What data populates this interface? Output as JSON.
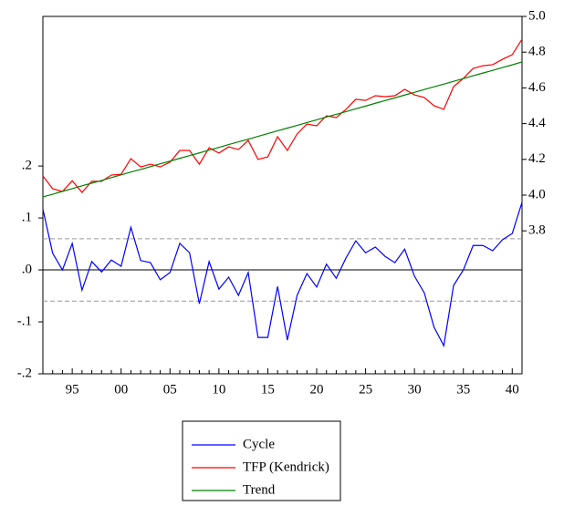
{
  "chart_data": {
    "type": "line",
    "categories": [
      null,
      null,
      null,
      "95",
      null,
      null,
      null,
      null,
      "00",
      null,
      null,
      null,
      null,
      "05",
      null,
      null,
      null,
      null,
      "10",
      null,
      null,
      null,
      null,
      "15",
      null,
      null,
      null,
      null,
      "20",
      null,
      null,
      null,
      null,
      "25",
      null,
      null,
      null,
      null,
      "30",
      null,
      null,
      null,
      null,
      "35",
      null,
      null,
      null,
      null,
      "40",
      null
    ],
    "ylim": [
      -0.2,
      0.488
    ],
    "yticks": [
      {
        "value": -0.2,
        "label": "-.2"
      },
      {
        "value": -0.1,
        "label": "-.1"
      },
      {
        "value": 0,
        "label": ".0"
      },
      {
        "value": 0.1,
        "label": ".1"
      },
      {
        "value": 0.2,
        "label": ".2"
      }
    ],
    "y2lim": [
      3.0,
      5.0
    ],
    "y2ticks": [
      3.8,
      {
        "value": 4.0,
        "label": "4.0"
      },
      4.2,
      4.4,
      4.6,
      4.8,
      {
        "value": 5.0,
        "label": "5.0"
      }
    ],
    "reference_lines": [
      {
        "value": 0.06,
        "style": "dashed",
        "color": "#999999"
      },
      {
        "value": 0,
        "style": "solid",
        "color": "#000000"
      },
      {
        "value": -0.06,
        "style": "dashed",
        "color": "#999999"
      }
    ],
    "legend": "bottom",
    "series": [
      {
        "name": "Cycle",
        "color": "#0000ff",
        "axis": "y",
        "values": [
          0.117,
          0.032,
          0,
          0.051,
          -0.039,
          0.016,
          -0.004,
          0.019,
          0.007,
          0.082,
          0.018,
          0.014,
          -0.019,
          -0.005,
          0.051,
          0.033,
          -0.065,
          0.016,
          -0.037,
          -0.014,
          -0.049,
          -0.005,
          -0.13,
          -0.13,
          -0.032,
          -0.135,
          -0.049,
          -0.007,
          -0.033,
          0.011,
          -0.016,
          0.023,
          0.056,
          0.033,
          0.044,
          0.026,
          0.014,
          0.04,
          -0.012,
          -0.044,
          -0.11,
          -0.146,
          -0.03,
          0,
          0.047,
          0.047,
          0.037,
          0.058,
          0.07,
          0.13
        ]
      },
      {
        "name": "TFP (Kendrick)",
        "color": "#ff0000",
        "axis": "y2",
        "values": [
          4.107,
          4.036,
          4.02,
          4.08,
          4.015,
          4.077,
          4.077,
          4.112,
          4.117,
          4.204,
          4.158,
          4.173,
          4.158,
          4.184,
          4.25,
          4.25,
          4.173,
          4.265,
          4.235,
          4.27,
          4.255,
          4.306,
          4.2,
          4.214,
          4.327,
          4.25,
          4.342,
          4.398,
          4.388,
          4.444,
          4.434,
          4.48,
          4.536,
          4.53,
          4.556,
          4.551,
          4.556,
          4.592,
          4.561,
          4.546,
          4.5,
          4.48,
          4.607,
          4.653,
          4.709,
          4.724,
          4.73,
          4.76,
          4.786,
          4.872
        ]
      },
      {
        "name": "Trend",
        "color": "#008000",
        "axis": "y2",
        "values": [
          3.99,
          4.005,
          4.021,
          4.036,
          4.052,
          4.067,
          4.082,
          4.098,
          4.113,
          4.129,
          4.144,
          4.159,
          4.175,
          4.19,
          4.206,
          4.221,
          4.236,
          4.252,
          4.267,
          4.283,
          4.298,
          4.313,
          4.329,
          4.344,
          4.36,
          4.375,
          4.39,
          4.406,
          4.421,
          4.437,
          4.452,
          4.467,
          4.483,
          4.498,
          4.514,
          4.529,
          4.544,
          4.56,
          4.575,
          4.591,
          4.606,
          4.621,
          4.637,
          4.652,
          4.668,
          4.683,
          4.698,
          4.714,
          4.729,
          4.745
        ]
      }
    ]
  }
}
